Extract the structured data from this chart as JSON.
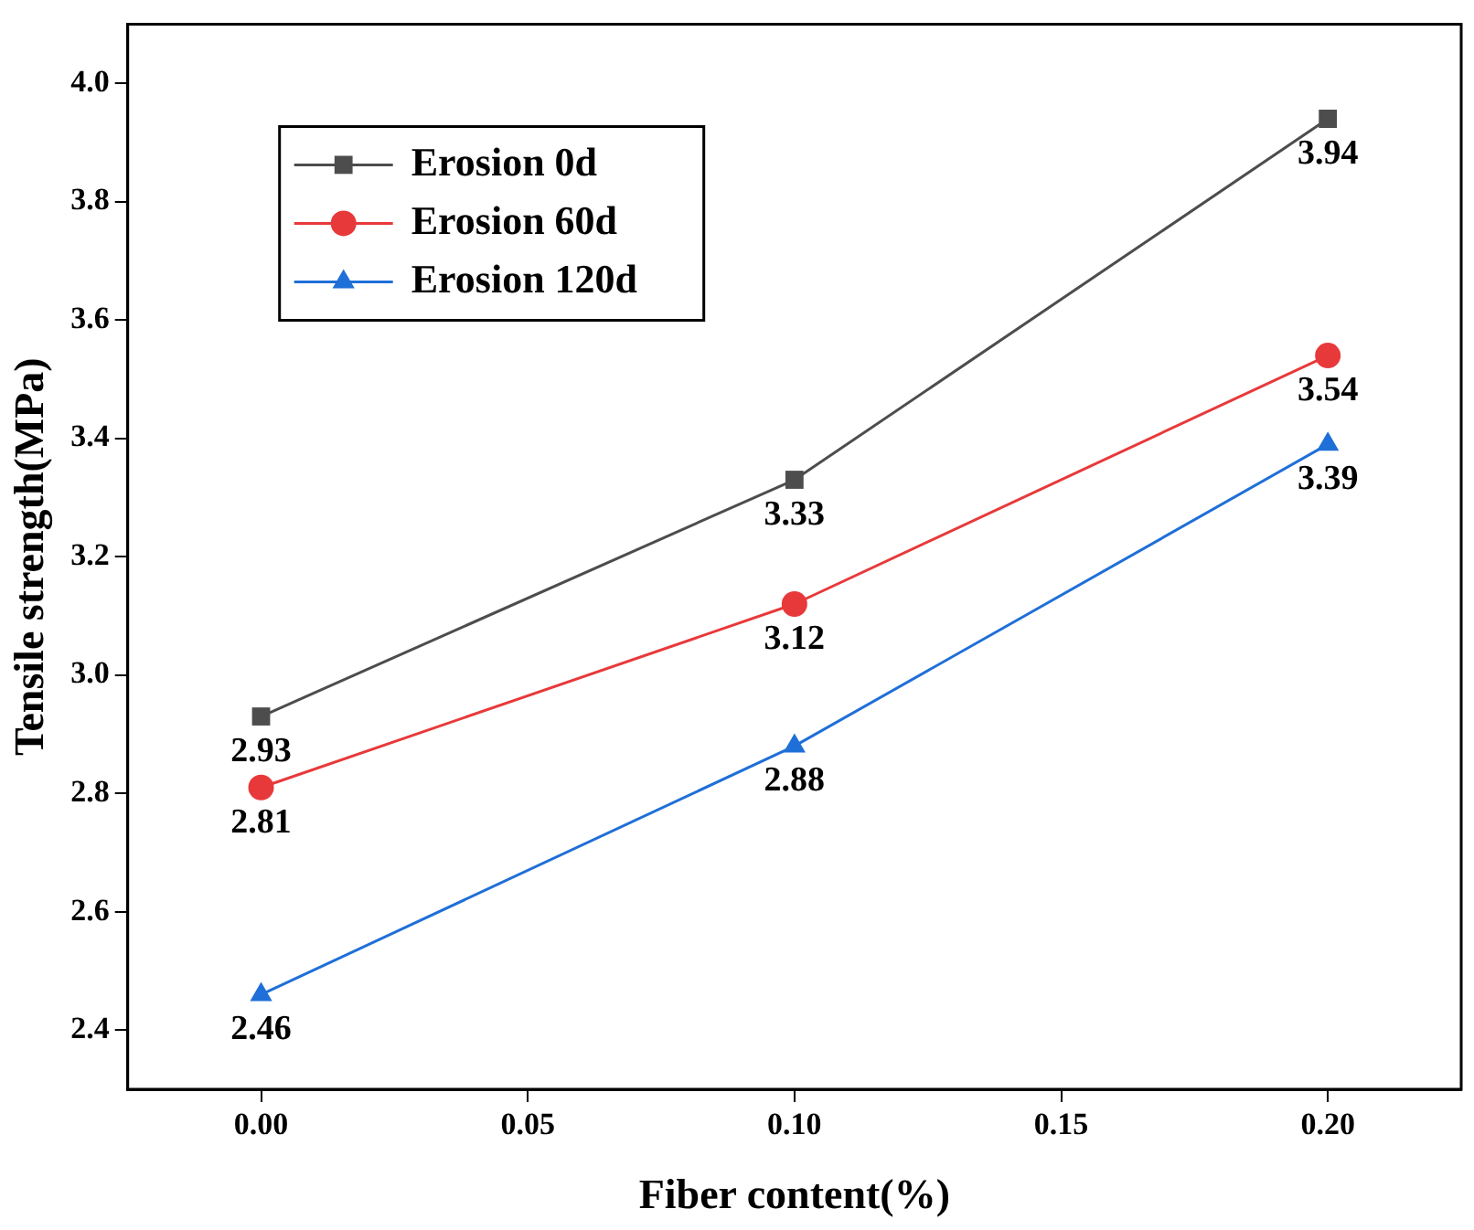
{
  "chart_data": {
    "type": "line",
    "xlabel": "Fiber content(%)",
    "ylabel": "Tensile strength(MPa)",
    "x": [
      0,
      0.1,
      0.2
    ],
    "series": [
      {
        "name": "Erosion 0d",
        "color": "#4d4d4d",
        "marker": "square",
        "values": [
          2.93,
          3.33,
          3.94
        ]
      },
      {
        "name": "Erosion 60d",
        "color": "#e8393a",
        "marker": "circle",
        "values": [
          2.81,
          3.12,
          3.54
        ]
      },
      {
        "name": "Erosion 120d",
        "color": "#1f6fd8",
        "marker": "triangle",
        "values": [
          2.46,
          2.88,
          3.39
        ]
      }
    ],
    "xlim": [
      -0.025,
      0.225
    ],
    "xticks": [
      {
        "value": 0,
        "label": "0.00"
      },
      {
        "value": 0.05,
        "label": "0.05"
      },
      {
        "value": 0.1,
        "label": "0.10"
      },
      {
        "value": 0.15,
        "label": "0.15"
      },
      {
        "value": 0.2,
        "label": "0.20"
      }
    ],
    "ylim": [
      2.3,
      4.1
    ],
    "yticks": [
      2.4,
      2.6,
      2.8,
      {
        "value": 3,
        "label": "3.0"
      },
      3.2,
      3.4,
      3.6,
      3.8,
      {
        "value": 4,
        "label": "4.0"
      }
    ],
    "grid": false,
    "legend": "top left",
    "data_labels": true,
    "line_style": "solid"
  }
}
